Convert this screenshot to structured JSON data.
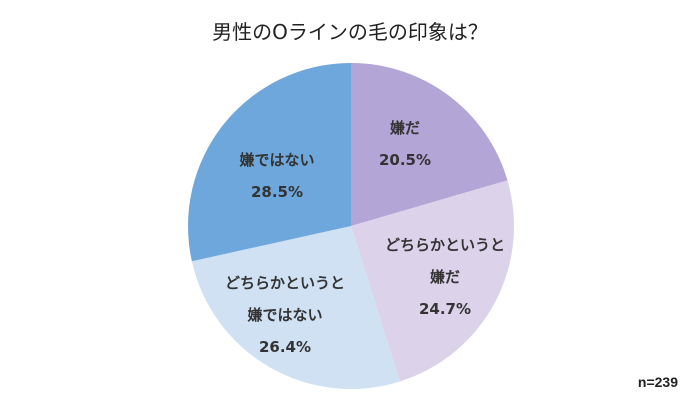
{
  "chart_data": {
    "type": "pie",
    "title": "男性のOラインの毛の印象は？",
    "start": "top, clockwise",
    "slices": [
      {
        "label": [
          "嫌だ"
        ],
        "value": 20.5,
        "value_label": "20.5%",
        "color": "#b3a5d5"
      },
      {
        "label": [
          "どちらかというと",
          "嫌だ"
        ],
        "value": 24.7,
        "value_label": "24.7%",
        "color": "#dcd3ea"
      },
      {
        "label": [
          "どちらかというと",
          "嫌ではない"
        ],
        "value": 26.4,
        "value_label": "26.4%",
        "color": "#cfe1f3"
      },
      {
        "label": [
          "嫌ではない"
        ],
        "value": 28.5,
        "value_label": "28.5%",
        "color": "#6ea7dc"
      }
    ],
    "note": "n=239"
  }
}
